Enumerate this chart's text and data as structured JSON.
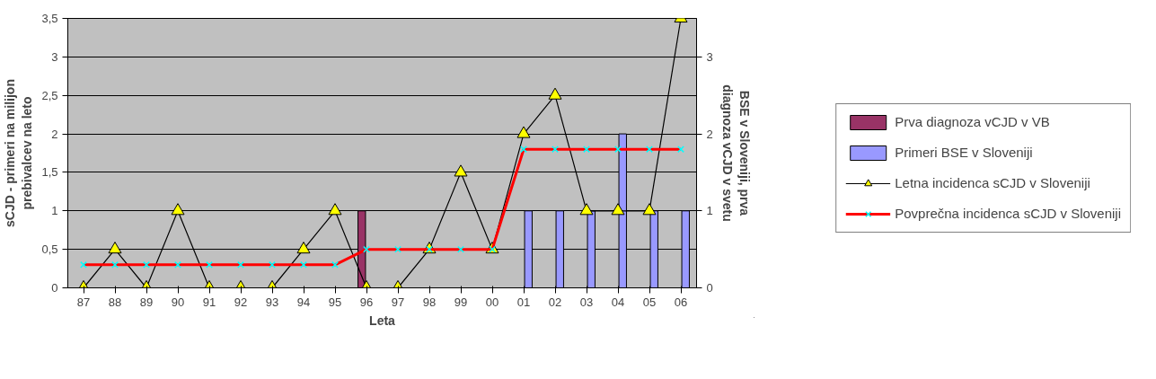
{
  "chart_data": {
    "type": "line",
    "xlabel": "Leta",
    "ylabel": "sCJD - primeri na milijon prebivalcev na leto",
    "y2label": "BSE v Sloveniji, prva diagnoza vCJD v svetu",
    "categories": [
      "87",
      "88",
      "89",
      "90",
      "91",
      "92",
      "93",
      "94",
      "95",
      "96",
      "97",
      "98",
      "99",
      "00",
      "01",
      "02",
      "03",
      "04",
      "05",
      "06"
    ],
    "ylim": [
      0,
      3.5
    ],
    "yticks": [
      0,
      {
        "value": 0.5,
        "label": "0,5"
      },
      1,
      {
        "value": 1.5,
        "label": "1,5"
      },
      2,
      {
        "value": 2.5,
        "label": "2,5"
      },
      3,
      {
        "value": 3.5,
        "label": "3,5"
      }
    ],
    "y2lim": [
      0,
      3.5
    ],
    "y2ticks": [
      0,
      1,
      2,
      3
    ],
    "grid": "y",
    "legend": "right",
    "series": [
      {
        "name": "Prva diagnoza vCJD v VB",
        "type": "bar",
        "color": "#993366",
        "values": [
          null,
          null,
          null,
          null,
          null,
          null,
          null,
          null,
          null,
          1,
          null,
          null,
          null,
          null,
          null,
          null,
          null,
          null,
          null,
          null
        ]
      },
      {
        "name": "Primeri BSE v Sloveniji",
        "type": "bar",
        "color": "#9999ff",
        "values": [
          null,
          null,
          null,
          null,
          null,
          null,
          null,
          null,
          null,
          null,
          null,
          null,
          null,
          null,
          1,
          1,
          1,
          2,
          1,
          1
        ]
      },
      {
        "name": "Letna incidenca sCJD v Sloveniji",
        "color": "#000000",
        "marker": "triangle",
        "values": [
          0,
          0.5,
          0,
          1,
          0,
          0,
          0,
          0.5,
          1,
          0,
          0,
          0.5,
          1.5,
          0.5,
          2,
          2.5,
          1,
          1,
          1,
          3.5
        ]
      },
      {
        "name": "Povprečna incidenca sCJD v Sloveniji",
        "color": "#ff0000",
        "marker": "cross",
        "values": [
          0.3,
          0.3,
          0.3,
          0.3,
          0.3,
          0.3,
          0.3,
          0.3,
          0.3,
          0.5,
          0.5,
          0.5,
          0.5,
          0.5,
          1.8,
          1.8,
          1.8,
          1.8,
          1.8,
          1.8
        ]
      }
    ]
  }
}
